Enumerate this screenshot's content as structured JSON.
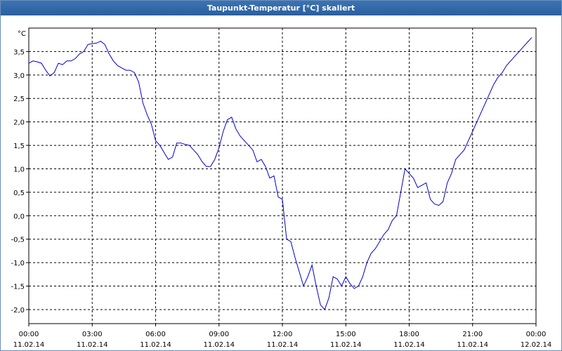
{
  "window": {
    "title": "Taupunkt-Temperatur [°C] skaliert"
  },
  "chart_data": {
    "type": "line",
    "title": "Taupunkt-Temperatur [°C] skaliert",
    "ylabel": "°C",
    "xlabel": "",
    "ylim": [
      -2.3,
      4.0
    ],
    "xlim": [
      0,
      24
    ],
    "grid": true,
    "y_ticks": [
      {
        "value": 3.5,
        "label": "3,5"
      },
      {
        "value": 3.0,
        "label": "3,0"
      },
      {
        "value": 2.5,
        "label": "2,5"
      },
      {
        "value": 2.0,
        "label": "2,0"
      },
      {
        "value": 1.5,
        "label": "1,5"
      },
      {
        "value": 1.0,
        "label": "1,0"
      },
      {
        "value": 0.5,
        "label": "0,5"
      },
      {
        "value": 0.0,
        "label": "0,0"
      },
      {
        "value": -0.5,
        "label": "-0,5"
      },
      {
        "value": -1.0,
        "label": "-1,0"
      },
      {
        "value": -1.5,
        "label": "-1,5"
      },
      {
        "value": -2.0,
        "label": "-2,0"
      }
    ],
    "x_ticks": [
      {
        "value": 0,
        "time": "00:00",
        "date": "11.02.14"
      },
      {
        "value": 3,
        "time": "03:00",
        "date": "11.02.14"
      },
      {
        "value": 6,
        "time": "06:00",
        "date": "11.02.14"
      },
      {
        "value": 9,
        "time": "09:00",
        "date": "11.02.14"
      },
      {
        "value": 12,
        "time": "12:00",
        "date": "11.02.14"
      },
      {
        "value": 15,
        "time": "15:00",
        "date": "11.02.14"
      },
      {
        "value": 18,
        "time": "18:00",
        "date": "11.02.14"
      },
      {
        "value": 21,
        "time": "21:00",
        "date": "11.02.14"
      },
      {
        "value": 24,
        "time": "00:00",
        "date": "12.02.14"
      }
    ],
    "series": [
      {
        "color": "#0000cc",
        "x": [
          0,
          0.2,
          0.4,
          0.6,
          0.8,
          1.0,
          1.2,
          1.4,
          1.6,
          1.8,
          2.0,
          2.2,
          2.4,
          2.6,
          2.8,
          3.0,
          3.2,
          3.4,
          3.6,
          3.8,
          4.0,
          4.2,
          4.4,
          4.6,
          4.8,
          5.0,
          5.2,
          5.4,
          5.6,
          5.8,
          6.0,
          6.2,
          6.4,
          6.6,
          6.8,
          7.0,
          7.2,
          7.4,
          7.6,
          7.8,
          8.0,
          8.2,
          8.4,
          8.6,
          8.8,
          9.0,
          9.2,
          9.4,
          9.6,
          9.8,
          10.0,
          10.2,
          10.4,
          10.6,
          10.8,
          11.0,
          11.2,
          11.4,
          11.6,
          11.8,
          12.0,
          12.2,
          12.4,
          12.6,
          12.8,
          13.0,
          13.2,
          13.4,
          13.6,
          13.8,
          14.0,
          14.2,
          14.4,
          14.6,
          14.8,
          15.0,
          15.2,
          15.4,
          15.6,
          15.8,
          16.0,
          16.2,
          16.4,
          16.6,
          16.8,
          17.0,
          17.2,
          17.4,
          17.6,
          17.8,
          18.0,
          18.2,
          18.4,
          18.6,
          18.8,
          19.0,
          19.2,
          19.4,
          19.6,
          19.8,
          20.0,
          20.2,
          20.4,
          20.6,
          20.8,
          21.0,
          21.2,
          21.4,
          21.6,
          21.8,
          22.0,
          22.2,
          22.4,
          22.6,
          22.8,
          23.0,
          23.2,
          23.4,
          23.6,
          23.8
        ],
        "values": [
          3.25,
          3.3,
          3.28,
          3.25,
          3.1,
          2.98,
          3.05,
          3.25,
          3.22,
          3.3,
          3.3,
          3.35,
          3.45,
          3.5,
          3.65,
          3.67,
          3.68,
          3.72,
          3.65,
          3.45,
          3.3,
          3.2,
          3.15,
          3.1,
          3.1,
          3.05,
          2.85,
          2.4,
          2.15,
          1.95,
          1.6,
          1.5,
          1.35,
          1.2,
          1.25,
          1.55,
          1.55,
          1.52,
          1.5,
          1.4,
          1.3,
          1.15,
          1.05,
          1.05,
          1.2,
          1.45,
          1.8,
          2.05,
          2.1,
          1.85,
          1.7,
          1.6,
          1.5,
          1.4,
          1.15,
          1.2,
          1.05,
          0.8,
          0.85,
          0.4,
          0.35,
          -0.5,
          -0.55,
          -0.9,
          -1.2,
          -1.5,
          -1.3,
          -1.05,
          -1.5,
          -1.9,
          -2.0,
          -1.75,
          -1.3,
          -1.35,
          -1.5,
          -1.3,
          -1.45,
          -1.55,
          -1.5,
          -1.3,
          -1.0,
          -0.8,
          -0.7,
          -0.55,
          -0.4,
          -0.3,
          -0.1,
          0.0,
          0.5,
          1.0,
          0.9,
          0.8,
          0.6,
          0.65,
          0.7,
          0.35,
          0.25,
          0.22,
          0.3,
          0.7,
          0.9,
          1.2,
          1.3,
          1.4,
          1.6,
          1.8,
          2.0,
          2.2,
          2.4,
          2.6,
          2.8,
          2.95,
          3.05,
          3.2,
          3.3,
          3.4,
          3.5,
          3.6,
          3.7,
          3.8
        ]
      }
    ]
  }
}
